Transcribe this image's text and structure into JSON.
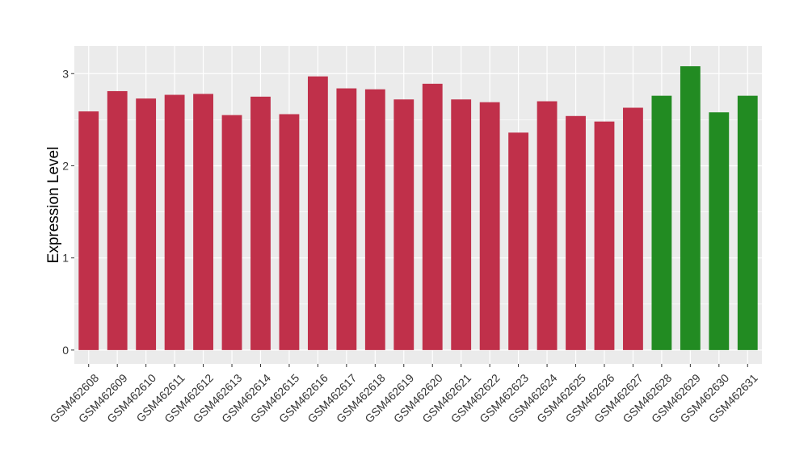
{
  "chart_data": {
    "type": "bar",
    "title": "",
    "xlabel": "",
    "ylabel": "Expression Level",
    "ylim": [
      -0.15,
      3.3
    ],
    "yticks": [
      0,
      1,
      2,
      3
    ],
    "grid": true,
    "categories": [
      "GSM462608",
      "GSM462609",
      "GSM462610",
      "GSM462611",
      "GSM462612",
      "GSM462613",
      "GSM462614",
      "GSM462615",
      "GSM462616",
      "GSM462617",
      "GSM462618",
      "GSM462619",
      "GSM462620",
      "GSM462621",
      "GSM462622",
      "GSM462623",
      "GSM462624",
      "GSM462625",
      "GSM462626",
      "GSM462627",
      "GSM462628",
      "GSM462629",
      "GSM462630",
      "GSM462631"
    ],
    "values": [
      2.59,
      2.81,
      2.73,
      2.77,
      2.78,
      2.55,
      2.75,
      2.56,
      2.97,
      2.84,
      2.83,
      2.72,
      2.89,
      2.72,
      2.69,
      2.36,
      2.7,
      2.54,
      2.48,
      2.63,
      2.76,
      3.08,
      2.58,
      2.76
    ],
    "bar_colors": [
      "#c0304a",
      "#c0304a",
      "#c0304a",
      "#c0304a",
      "#c0304a",
      "#c0304a",
      "#c0304a",
      "#c0304a",
      "#c0304a",
      "#c0304a",
      "#c0304a",
      "#c0304a",
      "#c0304a",
      "#c0304a",
      "#c0304a",
      "#c0304a",
      "#c0304a",
      "#c0304a",
      "#c0304a",
      "#c0304a",
      "#228b22",
      "#228b22",
      "#228b22",
      "#228b22"
    ],
    "panel_background": "#ebebeb",
    "grid_color": "#ffffff"
  }
}
